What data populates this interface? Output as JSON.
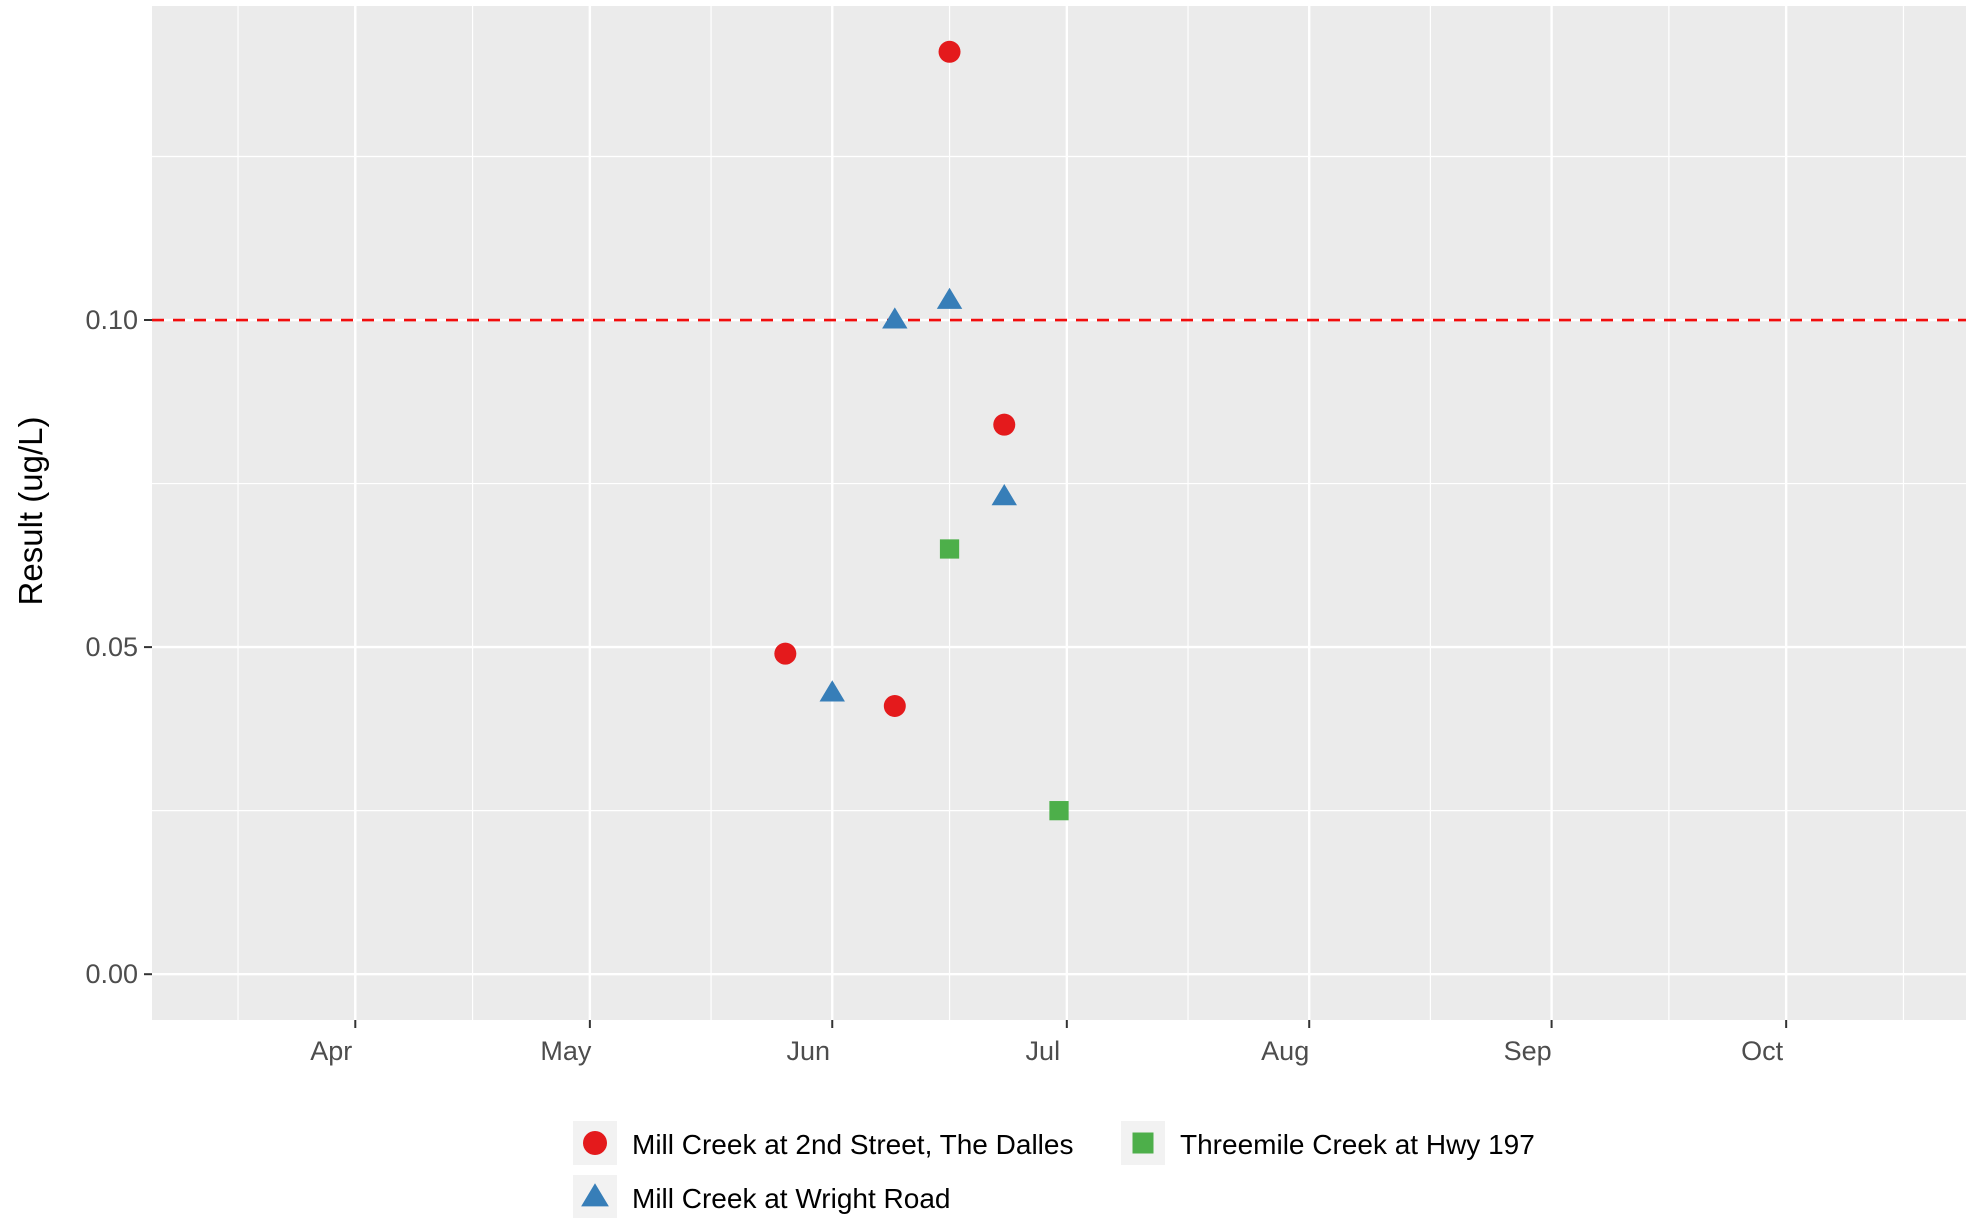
{
  "chart_data": {
    "type": "scatter",
    "title": "",
    "xlabel": "",
    "ylabel": "Result (ug/L)",
    "x_axis": {
      "type": "date",
      "range": [
        "2017-03-06",
        "2017-10-24"
      ],
      "ticks": [
        {
          "value": "2017-04-01",
          "label": "Apr"
        },
        {
          "value": "2017-05-01",
          "label": "May"
        },
        {
          "value": "2017-06-01",
          "label": "Jun"
        },
        {
          "value": "2017-07-01",
          "label": "Jul"
        },
        {
          "value": "2017-08-01",
          "label": "Aug"
        },
        {
          "value": "2017-09-01",
          "label": "Sep"
        },
        {
          "value": "2017-10-01",
          "label": "Oct"
        }
      ]
    },
    "y_axis": {
      "range": [
        -0.007,
        0.148
      ],
      "ticks": [
        {
          "value": 0.0,
          "label": "0.00"
        },
        {
          "value": 0.05,
          "label": "0.05"
        },
        {
          "value": 0.1,
          "label": "0.10"
        }
      ]
    },
    "grid": true,
    "reference_line": {
      "y": 0.1,
      "color": "#f20d0d",
      "style": "dashed"
    },
    "legend_position": "bottom",
    "series": [
      {
        "name": "Mill Creek at 2nd Street, The Dalles",
        "color": "#e41a1c",
        "marker": "circle",
        "points": [
          {
            "x": "2017-05-26",
            "y": 0.049
          },
          {
            "x": "2017-06-09",
            "y": 0.041
          },
          {
            "x": "2017-06-16",
            "y": 0.141
          },
          {
            "x": "2017-06-23",
            "y": 0.084
          }
        ]
      },
      {
        "name": "Mill Creek at Wright Road",
        "color": "#377eb8",
        "marker": "triangle",
        "points": [
          {
            "x": "2017-06-01",
            "y": 0.043
          },
          {
            "x": "2017-06-09",
            "y": 0.1
          },
          {
            "x": "2017-06-16",
            "y": 0.103
          },
          {
            "x": "2017-06-23",
            "y": 0.073
          }
        ]
      },
      {
        "name": "Threemile Creek at Hwy 197",
        "color": "#4daf4a",
        "marker": "square",
        "points": [
          {
            "x": "2017-06-16",
            "y": 0.065
          },
          {
            "x": "2017-06-30",
            "y": 0.025
          }
        ]
      }
    ]
  },
  "colors": {
    "panel_background": "#ebebeb",
    "grid_line": "#ffffff",
    "axis_text": "#4d4d4d",
    "title_text": "#000000"
  }
}
